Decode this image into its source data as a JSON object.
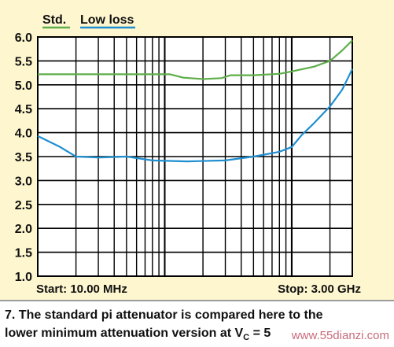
{
  "chart_data": {
    "type": "line",
    "legend": {
      "placement": "top-left",
      "entries": [
        "Std.",
        "Low loss"
      ]
    },
    "x_start_label": "Start: 10.00 MHz",
    "x_stop_label": "Stop: 3.00 GHz",
    "x_scale": "log",
    "x_range_mhz": [
      10,
      3000
    ],
    "ylim": [
      1.0,
      6.0
    ],
    "yticks": [
      "6.0",
      "5.5",
      "5.0",
      "4.5",
      "4.0",
      "3.5",
      "3.0",
      "2.5",
      "2.0",
      "1.5",
      "1.0"
    ],
    "grid": true,
    "series": [
      {
        "name": "Std.",
        "color": "#5fae4a",
        "points": [
          [
            10,
            5.22
          ],
          [
            20,
            5.22
          ],
          [
            50,
            5.22
          ],
          [
            110,
            5.22
          ],
          [
            140,
            5.15
          ],
          [
            200,
            5.12
          ],
          [
            280,
            5.14
          ],
          [
            330,
            5.2
          ],
          [
            500,
            5.2
          ],
          [
            800,
            5.23
          ],
          [
            1000,
            5.28
          ],
          [
            1500,
            5.38
          ],
          [
            2000,
            5.5
          ],
          [
            2500,
            5.72
          ],
          [
            3000,
            5.93
          ]
        ]
      },
      {
        "name": "Low loss",
        "color": "#1f8fd0",
        "points": [
          [
            10,
            3.93
          ],
          [
            15,
            3.7
          ],
          [
            20,
            3.5
          ],
          [
            30,
            3.48
          ],
          [
            50,
            3.5
          ],
          [
            80,
            3.42
          ],
          [
            150,
            3.4
          ],
          [
            300,
            3.42
          ],
          [
            500,
            3.5
          ],
          [
            800,
            3.6
          ],
          [
            1000,
            3.7
          ],
          [
            1200,
            3.95
          ],
          [
            1500,
            4.2
          ],
          [
            2000,
            4.55
          ],
          [
            2500,
            4.9
          ],
          [
            3000,
            5.33
          ]
        ]
      }
    ]
  },
  "caption": {
    "line1": "7. The standard pi attenuator is compared here to the",
    "line2_prefix": "lower minimum attenuation version at V",
    "line2_sub": "C",
    "line2_suffix": " = 5"
  },
  "watermark": "www.55dianzi.com"
}
